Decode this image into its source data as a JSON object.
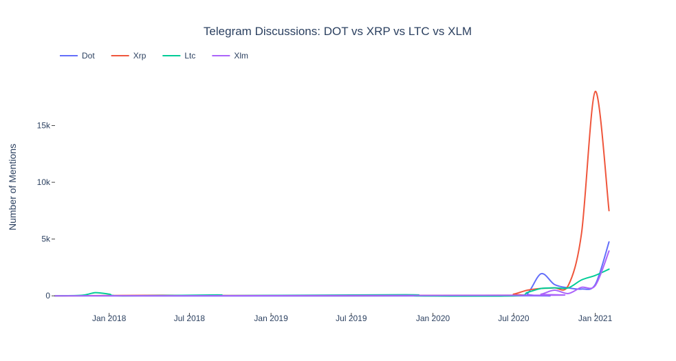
{
  "chart_data": {
    "type": "line",
    "title": "Telegram Discussions: DOT vs XRP vs LTC vs XLM",
    "xlabel": "",
    "ylabel": "Number of Mentions",
    "legend_position": "top-left",
    "grid": false,
    "x_ticks": [
      {
        "label": "Jan 2018",
        "date": "2018-01-01"
      },
      {
        "label": "Jul 2018",
        "date": "2018-07-01"
      },
      {
        "label": "Jan 2019",
        "date": "2019-01-01"
      },
      {
        "label": "Jul 2019",
        "date": "2019-07-01"
      },
      {
        "label": "Jan 2020",
        "date": "2020-01-01"
      },
      {
        "label": "Jul 2020",
        "date": "2020-07-01"
      },
      {
        "label": "Jan 2021",
        "date": "2021-01-01"
      }
    ],
    "y_ticks": [
      {
        "label": "0",
        "value": 0
      },
      {
        "label": "5k",
        "value": 5000
      },
      {
        "label": "10k",
        "value": 10000
      },
      {
        "label": "15k",
        "value": 15000
      }
    ],
    "xlim": [
      "2017-09-01",
      "2021-05-01"
    ],
    "ylim": [
      -1500,
      20000
    ],
    "series": [
      {
        "name": "Dot",
        "color": "#636efa",
        "points": [
          [
            "2017-09-01",
            0
          ],
          [
            "2020-07-01",
            0
          ],
          [
            "2020-08-01",
            200
          ],
          [
            "2020-09-01",
            1950
          ],
          [
            "2020-10-01",
            1000
          ],
          [
            "2020-11-01",
            700
          ],
          [
            "2020-12-01",
            600
          ],
          [
            "2021-01-01",
            1000
          ],
          [
            "2021-02-01",
            4750
          ]
        ]
      },
      {
        "name": "Xrp",
        "color": "#ef553b",
        "points": [
          [
            "2017-09-01",
            0
          ],
          [
            "2018-05-01",
            50
          ],
          [
            "2018-10-01",
            30
          ],
          [
            "2020-06-01",
            50
          ],
          [
            "2020-07-01",
            150
          ],
          [
            "2020-08-01",
            500
          ],
          [
            "2020-09-01",
            650
          ],
          [
            "2020-10-01",
            700
          ],
          [
            "2020-11-01",
            900
          ],
          [
            "2020-12-01",
            5500
          ],
          [
            "2021-01-01",
            18000
          ],
          [
            "2021-02-01",
            7500
          ]
        ]
      },
      {
        "name": "Ltc",
        "color": "#00cc96",
        "points": [
          [
            "2017-09-01",
            0
          ],
          [
            "2017-11-01",
            50
          ],
          [
            "2017-12-01",
            280
          ],
          [
            "2018-01-01",
            150
          ],
          [
            "2018-02-01",
            0
          ],
          [
            "2018-09-01",
            80
          ],
          [
            "2018-10-01",
            20
          ],
          [
            "2019-11-01",
            100
          ],
          [
            "2019-12-01",
            0
          ],
          [
            "2020-07-01",
            0
          ],
          [
            "2020-08-01",
            300
          ],
          [
            "2020-09-01",
            650
          ],
          [
            "2020-10-01",
            700
          ],
          [
            "2020-11-01",
            700
          ],
          [
            "2020-12-01",
            1400
          ],
          [
            "2021-01-01",
            1800
          ],
          [
            "2021-02-01",
            2350
          ]
        ]
      },
      {
        "name": "Xlm",
        "color": "#ab63fa",
        "points": [
          [
            "2017-09-01",
            0
          ],
          [
            "2020-08-01",
            50
          ],
          [
            "2020-09-01",
            150
          ],
          [
            "2020-10-01",
            500
          ],
          [
            "2020-11-01",
            200
          ],
          [
            "2020-12-01",
            750
          ],
          [
            "2021-01-01",
            900
          ],
          [
            "2021-02-01",
            3950
          ]
        ]
      }
    ]
  }
}
